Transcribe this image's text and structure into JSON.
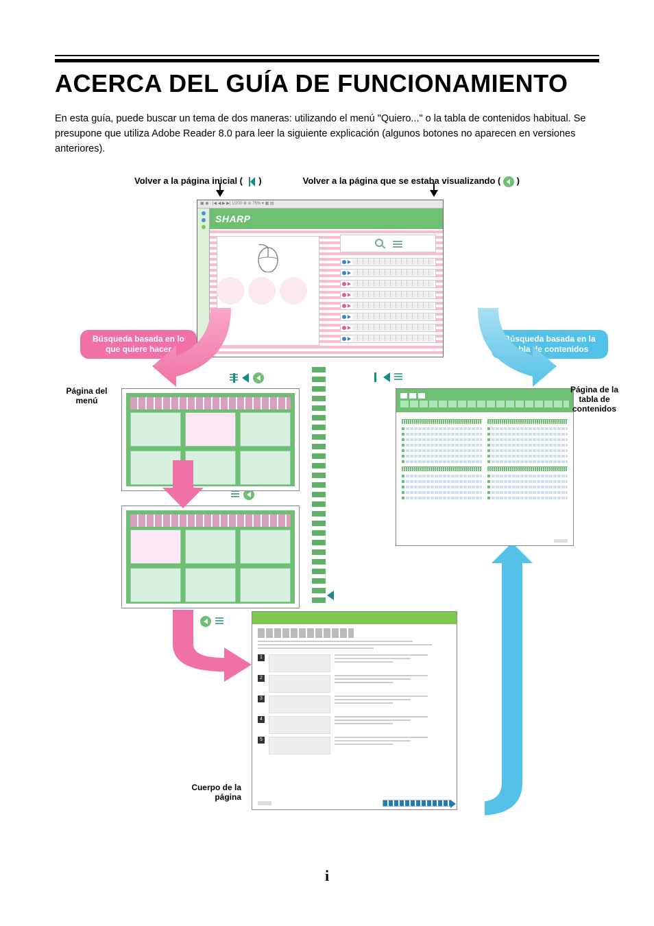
{
  "page": {
    "title": "ACERCA DEL GUÍA DE FUNCIONAMIENTO",
    "intro": "En esta guía, puede buscar un tema de dos maneras: utilizando el menú \"Quiero...\" o la tabla de contenidos habitual. Se presupone que utiliza Adobe Reader 8.0 para leer la siguiente explicación (algunos botones no aparecen en versiones anteriores).",
    "number": "i"
  },
  "hints": {
    "home": "Volver a la página inicial (",
    "home_close": ")",
    "back": "Volver a la página que se estaba visualizando (",
    "back_close": ")"
  },
  "labels": {
    "search_want": "Búsqueda basada en lo que quiere hacer",
    "search_toc": "Búsqueda basada en la tabla de contenidos",
    "menu_page": "Página del menú",
    "toc_page": "Página de la tabla de contenidos",
    "body_page": "Cuerpo de la página"
  },
  "brand": {
    "name": "SHARP"
  },
  "colors": {
    "green": "#6fbf73",
    "green_light": "#aee6b8",
    "green_cell": "#d8f0e0",
    "pink": "#f071a6",
    "pink_light": "#fce8f4",
    "pink_stripe": "#f8bcd0",
    "blue": "#54c2e8",
    "blue_dark": "#1a7fb5",
    "teal": "#198a8a",
    "grey": "#cccccc"
  },
  "top_window": {
    "side_dots": [
      "#4a90d9",
      "#4a90d9",
      "#7fc850"
    ],
    "pills": [
      {
        "dot": "#3a7fd5"
      },
      {
        "dot": "#3a7fd5"
      },
      {
        "dot": "#e85a8a"
      },
      {
        "dot": "#e85a8a"
      },
      {
        "dot": "#e85a8a"
      },
      {
        "dot": "#3a7fd5"
      },
      {
        "dot": "#e85a8a"
      },
      {
        "dot": "#3a7fd5"
      }
    ]
  },
  "menu": {
    "grid1": [
      false,
      true,
      false,
      false,
      false,
      false
    ],
    "grid2": [
      true,
      false,
      false,
      false,
      false,
      false
    ]
  },
  "toc": {
    "left": [
      "sec",
      "line",
      "line",
      "line",
      "line",
      "line",
      "line",
      "line",
      "sec",
      "line",
      "line",
      "line",
      "line",
      "line"
    ],
    "right": [
      "sec",
      "line",
      "line",
      "line",
      "line",
      "line",
      "line",
      "line",
      "sec",
      "line",
      "line",
      "line",
      "line",
      "line"
    ]
  },
  "body": {
    "steps": [
      1,
      2,
      3,
      4,
      5
    ]
  }
}
